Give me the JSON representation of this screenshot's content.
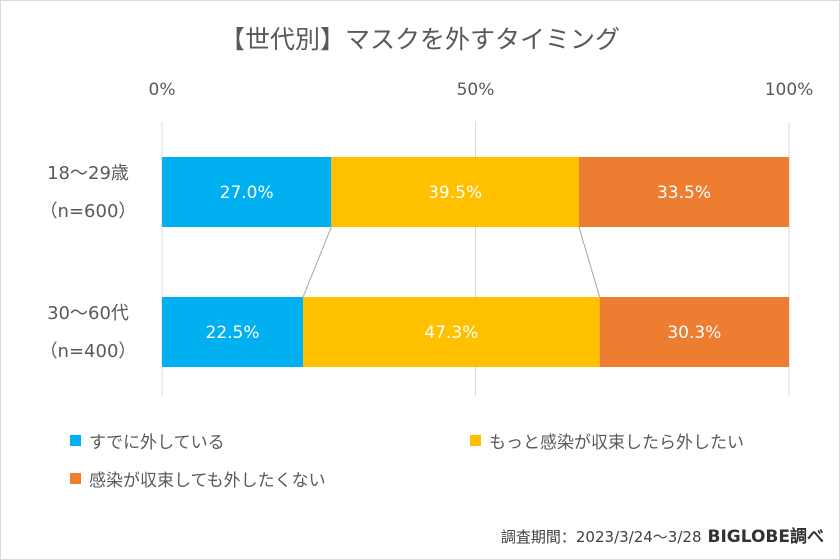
{
  "chart_data": {
    "type": "bar",
    "orientation": "horizontal",
    "stacked": "percent",
    "title": "【世代別】マスクを外すタイミング",
    "categories": [
      {
        "label": "18〜29歳",
        "sub": "（n=600）"
      },
      {
        "label": "30〜60代",
        "sub": "（n=400）"
      }
    ],
    "series": [
      {
        "name": "すでに外している",
        "color": "#00b0f0",
        "values": [
          27.0,
          22.5
        ],
        "labels": [
          "27.0%",
          "22.5%"
        ]
      },
      {
        "name": "もっと感染が収束したら外したい",
        "color": "#ffc000",
        "values": [
          39.5,
          47.3
        ],
        "labels": [
          "39.5%",
          "47.3%"
        ]
      },
      {
        "name": "感染が収束しても外したくない",
        "color": "#ed7d31",
        "values": [
          33.5,
          30.3
        ],
        "labels": [
          "33.5%",
          "30.3%"
        ]
      }
    ],
    "x_ticks": [
      "0%",
      "50%",
      "100%"
    ],
    "xlim": [
      0,
      100
    ],
    "grid": true,
    "legend_position": "bottom",
    "series_lines": true
  },
  "source": {
    "text": "調査期間：2023/3/24〜3/28",
    "brand": "BIGLOBE調べ"
  }
}
